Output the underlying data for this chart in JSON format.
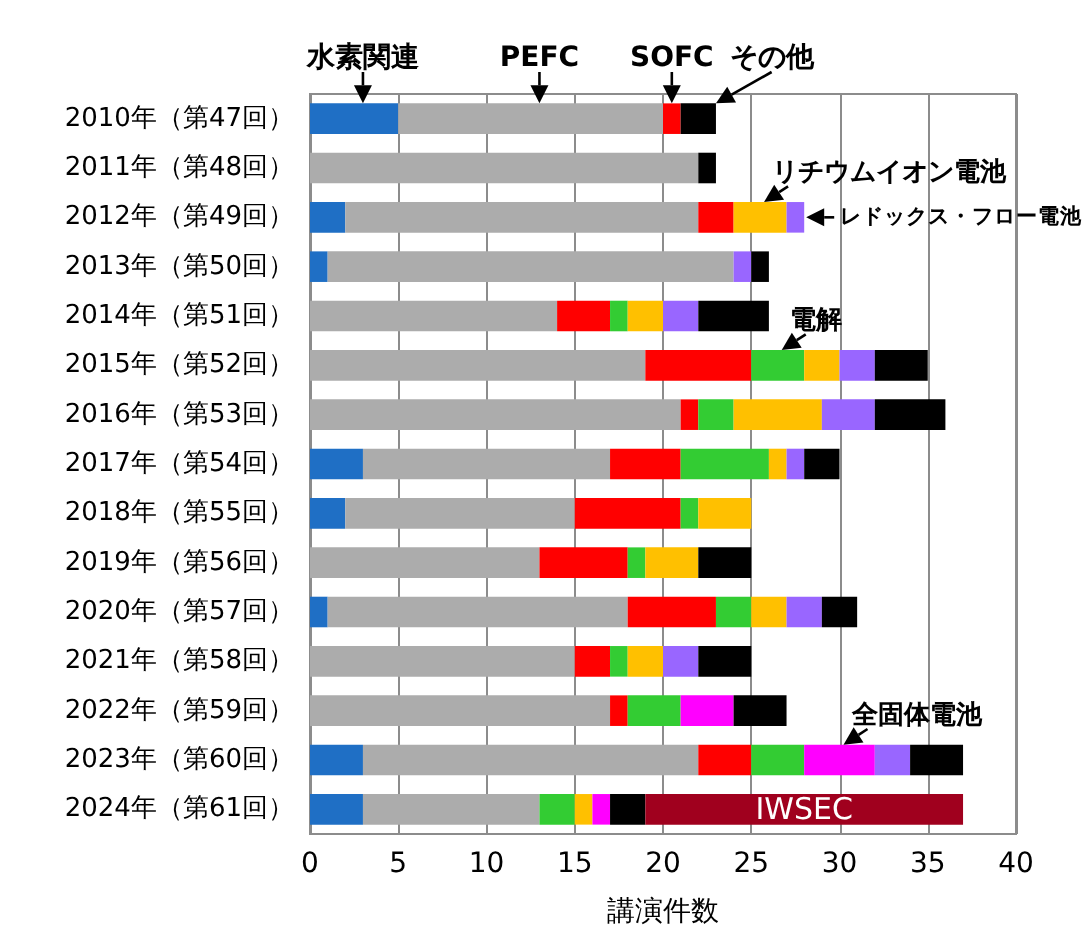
{
  "chart_data": {
    "type": "bar",
    "orientation": "horizontal",
    "stacked": true,
    "xlabel": "講演件数",
    "categories": [
      "2010年（第47回）",
      "2011年（第48回）",
      "2012年（第49回）",
      "2013年（第50回）",
      "2014年（第51回）",
      "2015年（第52回）",
      "2016年（第53回）",
      "2017年（第54回）",
      "2018年（第55回）",
      "2019年（第56回）",
      "2020年（第57回）",
      "2021年（第58回）",
      "2022年（第59回）",
      "2023年（第60回）",
      "2024年（第61回）"
    ],
    "series": [
      {
        "color": "#1f6fc5",
        "values": [
          5,
          null,
          2,
          1,
          null,
          null,
          null,
          3,
          2,
          null,
          1,
          null,
          null,
          3,
          3
        ]
      },
      {
        "color": "#acacac",
        "values": [
          15,
          22,
          20,
          23,
          14,
          19,
          21,
          14,
          13,
          13,
          17,
          15,
          17,
          19,
          10
        ]
      },
      {
        "color": "#ff0000",
        "values": [
          1,
          null,
          2,
          null,
          3,
          6,
          1,
          4,
          6,
          5,
          5,
          2,
          1,
          3,
          null
        ]
      },
      {
        "color": "#33cc33",
        "values": [
          null,
          null,
          null,
          null,
          1,
          3,
          2,
          5,
          1,
          1,
          2,
          1,
          3,
          3,
          2
        ]
      },
      {
        "color": "#ffc000",
        "values": [
          null,
          null,
          3,
          null,
          2,
          2,
          5,
          1,
          3,
          3,
          2,
          2,
          null,
          null,
          1
        ]
      },
      {
        "color": "#ff00ff",
        "values": [
          null,
          null,
          null,
          null,
          null,
          null,
          null,
          null,
          null,
          null,
          null,
          null,
          3,
          4,
          1
        ]
      },
      {
        "color": "#9966ff",
        "values": [
          null,
          null,
          1,
          1,
          2,
          2,
          3,
          1,
          null,
          null,
          2,
          2,
          null,
          2,
          null
        ]
      },
      {
        "color": "#000000",
        "values": [
          2,
          1,
          null,
          1,
          4,
          3,
          4,
          2,
          null,
          3,
          2,
          3,
          3,
          3,
          2
        ]
      },
      {
        "name": "IWSEC",
        "color": "#a0001e",
        "values": [
          null,
          null,
          null,
          null,
          null,
          null,
          null,
          null,
          null,
          null,
          null,
          null,
          null,
          null,
          18
        ]
      }
    ],
    "xlim": [
      0,
      40
    ],
    "xticks": [
      0,
      5,
      10,
      15,
      20,
      25,
      30,
      35,
      40
    ],
    "grid": "x",
    "annotations": [
      {
        "text": "水素関連",
        "x": 3,
        "y": "2010年（第47回）"
      },
      {
        "text": "PEFC",
        "x": 13,
        "y": "2010年（第47回）"
      },
      {
        "text": "SOFC",
        "x": 20.5,
        "y": "2010年（第47回）"
      },
      {
        "text": "その他",
        "x": 23,
        "y": "2010年（第47回）"
      },
      {
        "text": "リチウムイオン電池",
        "x": 25.5,
        "y": "2012年（第49回）"
      },
      {
        "text": "レドックス・フロー電池",
        "x": 28,
        "y": "2012年（第49回）"
      },
      {
        "text": "電解",
        "x": 26.5,
        "y": "2015年（第52回）"
      },
      {
        "text": "全固体電池",
        "x": 30,
        "y": "2023年（第60回）"
      }
    ]
  }
}
